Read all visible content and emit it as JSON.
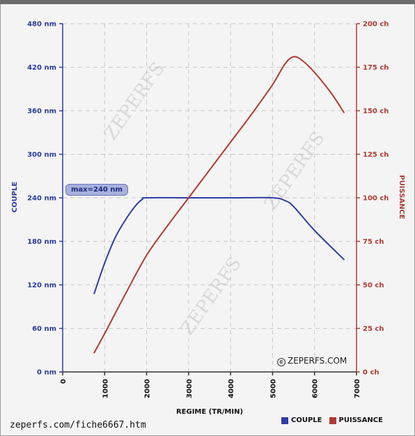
{
  "source_url": "zeperfs.com/fiche6667.htm",
  "credit": "ZEPERFS.COM",
  "watermark": "ZEPERFS",
  "max_label": "max=240 nm",
  "colors": {
    "couple": "#2f3ca6",
    "puissance": "#b03a32"
  },
  "chart_data": {
    "type": "line",
    "xlabel": "regime (tr/min)",
    "x_ticks": [
      "0",
      "1000",
      "2000",
      "3000",
      "4000",
      "5000",
      "6000",
      "7000"
    ],
    "xlim": [
      0,
      7000
    ],
    "y_left": {
      "label": "couple",
      "ticks": [
        "0 nm",
        "60 nm",
        "120 nm",
        "180 nm",
        "240 nm",
        "300 nm",
        "360 nm",
        "420 nm",
        "480 nm"
      ],
      "lim": [
        0,
        480
      ]
    },
    "y_right": {
      "label": "puissance",
      "ticks": [
        "0 ch",
        "25 ch",
        "50 ch",
        "75 ch",
        "100 ch",
        "125 ch",
        "150 ch",
        "175 ch",
        "200 ch"
      ],
      "lim": [
        0,
        200
      ]
    },
    "series": [
      {
        "name": "couple",
        "axis": "left",
        "x": [
          750,
          1000,
          1250,
          1500,
          1750,
          1900,
          2000,
          3000,
          4000,
          5000,
          5300,
          5500,
          6000,
          6700
        ],
        "y": [
          108,
          150,
          185,
          210,
          230,
          238,
          240,
          240,
          240,
          240,
          236,
          228,
          195,
          155
        ]
      },
      {
        "name": "puissance",
        "axis": "right",
        "x": [
          750,
          1000,
          1500,
          2000,
          2500,
          3000,
          3500,
          4000,
          4500,
          5000,
          5300,
          5500,
          5700,
          6000,
          6400,
          6700
        ],
        "y": [
          11,
          22,
          45,
          67,
          84,
          100,
          116,
          132,
          148,
          165,
          177,
          181,
          179,
          172,
          160,
          149
        ]
      }
    ],
    "legend": [
      "couple",
      "puissance"
    ],
    "legend_position": "bottom-right",
    "grid": true
  }
}
